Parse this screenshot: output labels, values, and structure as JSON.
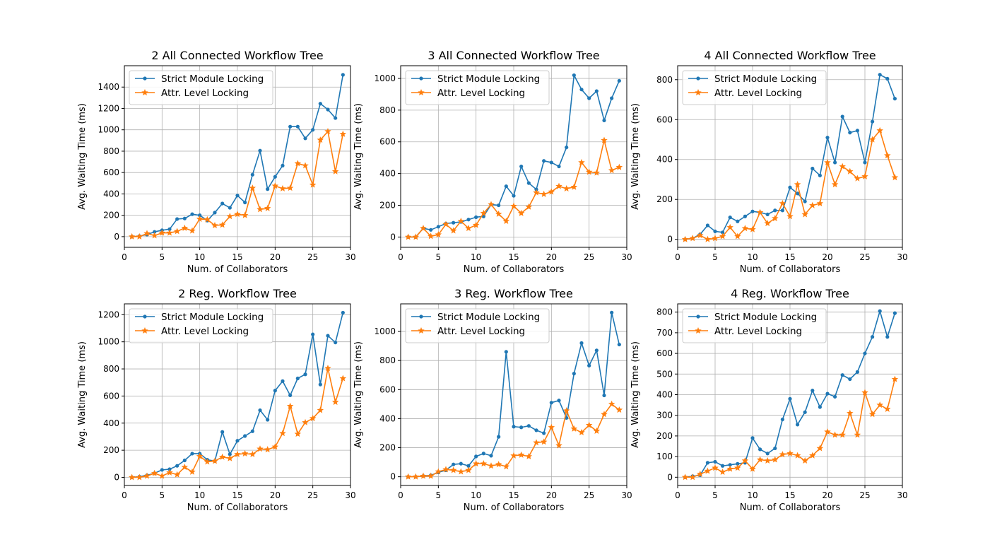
{
  "legend_labels": {
    "strict": "Strict Module Locking",
    "attr": "Attr. Level Locking"
  },
  "colors": {
    "strict": "#1f77b4",
    "attr": "#ff7f0e",
    "grid": "#b0b0b0"
  },
  "chart_data": [
    {
      "type": "line",
      "title": "2 All Connected Workflow Tree",
      "xlabel": "Num. of Collaborators",
      "ylabel": "Avg. Waiting Time (ms)",
      "xlim": [
        0,
        30
      ],
      "ylim": [
        -100,
        1600
      ],
      "xticks": [
        0,
        5,
        10,
        15,
        20,
        25,
        30
      ],
      "yticks": [
        0,
        200,
        400,
        600,
        800,
        1000,
        1200,
        1400
      ],
      "grid": true,
      "legend_position": "top-left",
      "x": [
        1,
        2,
        3,
        4,
        5,
        6,
        7,
        8,
        9,
        10,
        11,
        12,
        13,
        14,
        15,
        16,
        17,
        18,
        19,
        20,
        21,
        22,
        23,
        24,
        25,
        26,
        27,
        28,
        29
      ],
      "series": [
        {
          "name": "Strict Module Locking",
          "marker": "dot",
          "values": [
            0,
            5,
            20,
            45,
            60,
            70,
            165,
            170,
            210,
            200,
            150,
            225,
            310,
            270,
            385,
            320,
            580,
            805,
            445,
            560,
            665,
            1030,
            1030,
            920,
            1000,
            1245,
            1190,
            1110,
            1515
          ]
        },
        {
          "name": "Attr. Level Locking",
          "marker": "star",
          "values": [
            0,
            0,
            30,
            10,
            35,
            35,
            50,
            80,
            55,
            165,
            160,
            105,
            110,
            190,
            210,
            200,
            455,
            255,
            265,
            475,
            450,
            455,
            685,
            665,
            485,
            905,
            985,
            610,
            960
          ]
        }
      ]
    },
    {
      "type": "line",
      "title": "3 All Connected Workflow Tree",
      "xlabel": "Num. of Collaborators",
      "ylabel": "Avg. Waiting Time (ms)",
      "xlim": [
        0,
        30
      ],
      "ylim": [
        -65,
        1080
      ],
      "xticks": [
        0,
        5,
        10,
        15,
        20,
        25,
        30
      ],
      "yticks": [
        0,
        200,
        400,
        600,
        800,
        1000
      ],
      "grid": true,
      "legend_position": "top-left",
      "x": [
        1,
        2,
        3,
        4,
        5,
        6,
        7,
        8,
        9,
        10,
        11,
        12,
        13,
        14,
        15,
        16,
        17,
        18,
        19,
        20,
        21,
        22,
        23,
        24,
        25,
        26,
        27,
        28,
        29
      ],
      "series": [
        {
          "name": "Strict Module Locking",
          "marker": "dot",
          "values": [
            0,
            0,
            55,
            45,
            65,
            85,
            90,
            95,
            110,
            125,
            130,
            205,
            200,
            320,
            260,
            445,
            340,
            300,
            480,
            470,
            445,
            565,
            1020,
            930,
            875,
            920,
            735,
            875,
            985
          ]
        },
        {
          "name": "Attr. Level Locking",
          "marker": "star",
          "values": [
            0,
            0,
            55,
            5,
            15,
            80,
            40,
            100,
            55,
            75,
            150,
            205,
            145,
            100,
            195,
            150,
            190,
            280,
            270,
            285,
            320,
            305,
            315,
            470,
            410,
            405,
            610,
            420,
            440
          ]
        }
      ]
    },
    {
      "type": "line",
      "title": "4 All Connected Workflow Tree",
      "xlabel": "Num. of Collaborators",
      "ylabel": "Avg. Waiting Time (ms)",
      "xlim": [
        0,
        30
      ],
      "ylim": [
        -40,
        870
      ],
      "xticks": [
        0,
        5,
        10,
        15,
        20,
        25,
        30
      ],
      "yticks": [
        0,
        200,
        400,
        600,
        800
      ],
      "grid": true,
      "legend_position": "top-left",
      "x": [
        1,
        2,
        3,
        4,
        5,
        6,
        7,
        8,
        9,
        10,
        11,
        12,
        13,
        14,
        15,
        16,
        17,
        18,
        19,
        20,
        21,
        22,
        23,
        24,
        25,
        26,
        27,
        28,
        29
      ],
      "series": [
        {
          "name": "Strict Module Locking",
          "marker": "dot",
          "values": [
            0,
            5,
            25,
            70,
            40,
            35,
            110,
            90,
            115,
            140,
            135,
            125,
            145,
            145,
            260,
            230,
            190,
            355,
            320,
            510,
            385,
            615,
            535,
            545,
            385,
            590,
            825,
            805,
            705
          ]
        },
        {
          "name": "Attr. Level Locking",
          "marker": "star",
          "values": [
            0,
            5,
            20,
            0,
            5,
            15,
            60,
            15,
            55,
            50,
            135,
            80,
            105,
            180,
            115,
            275,
            125,
            170,
            180,
            385,
            275,
            365,
            340,
            305,
            315,
            500,
            545,
            420,
            310
          ]
        }
      ]
    },
    {
      "type": "line",
      "title": "2 Reg. Workflow Tree",
      "xlabel": "Num. of Collaborators",
      "ylabel": "Avg. Waiting Time (ms)",
      "xlim": [
        0,
        30
      ],
      "ylim": [
        -60,
        1280
      ],
      "xticks": [
        0,
        5,
        10,
        15,
        20,
        25,
        30
      ],
      "yticks": [
        0,
        200,
        400,
        600,
        800,
        1000,
        1200
      ],
      "grid": true,
      "legend_position": "top-left",
      "x": [
        1,
        2,
        3,
        4,
        5,
        6,
        7,
        8,
        9,
        10,
        11,
        12,
        13,
        14,
        15,
        16,
        17,
        18,
        19,
        20,
        21,
        22,
        23,
        24,
        25,
        26,
        27,
        28,
        29
      ],
      "series": [
        {
          "name": "Strict Module Locking",
          "marker": "dot",
          "values": [
            0,
            5,
            15,
            30,
            55,
            60,
            85,
            125,
            175,
            175,
            130,
            120,
            335,
            170,
            270,
            305,
            340,
            495,
            425,
            640,
            710,
            605,
            730,
            760,
            1055,
            685,
            1045,
            995,
            1215
          ]
        },
        {
          "name": "Attr. Level Locking",
          "marker": "star",
          "values": [
            0,
            0,
            10,
            30,
            10,
            35,
            20,
            75,
            40,
            155,
            115,
            120,
            150,
            140,
            170,
            175,
            170,
            210,
            205,
            225,
            325,
            525,
            320,
            405,
            435,
            495,
            805,
            555,
            730
          ]
        }
      ]
    },
    {
      "type": "line",
      "title": "3 Reg. Workflow Tree",
      "xlabel": "Num. of Collaborators",
      "ylabel": "Avg. Waiting Time (ms)",
      "xlim": [
        0,
        30
      ],
      "ylim": [
        -60,
        1190
      ],
      "xticks": [
        0,
        5,
        10,
        15,
        20,
        25,
        30
      ],
      "yticks": [
        0,
        200,
        400,
        600,
        800,
        1000
      ],
      "grid": true,
      "legend_position": "top-left",
      "x": [
        1,
        2,
        3,
        4,
        5,
        6,
        7,
        8,
        9,
        10,
        11,
        12,
        13,
        14,
        15,
        16,
        17,
        18,
        19,
        20,
        21,
        22,
        23,
        24,
        25,
        26,
        27,
        28,
        29
      ],
      "series": [
        {
          "name": "Strict Module Locking",
          "marker": "dot",
          "values": [
            0,
            0,
            5,
            10,
            30,
            45,
            85,
            90,
            75,
            140,
            160,
            145,
            275,
            860,
            345,
            340,
            350,
            320,
            300,
            510,
            525,
            405,
            710,
            920,
            765,
            870,
            560,
            1130,
            910
          ]
        },
        {
          "name": "Attr. Level Locking",
          "marker": "star",
          "values": [
            0,
            0,
            5,
            5,
            35,
            50,
            45,
            35,
            45,
            90,
            90,
            75,
            85,
            70,
            145,
            150,
            140,
            235,
            240,
            340,
            215,
            455,
            330,
            305,
            355,
            315,
            430,
            500,
            460
          ]
        }
      ]
    },
    {
      "type": "line",
      "title": "4 Reg. Workflow Tree",
      "xlabel": "Num. of Collaborators",
      "ylabel": "Avg. Waiting Time (ms)",
      "xlim": [
        0,
        30
      ],
      "ylim": [
        -40,
        840
      ],
      "xticks": [
        0,
        5,
        10,
        15,
        20,
        25,
        30
      ],
      "yticks": [
        0,
        100,
        200,
        300,
        400,
        500,
        600,
        700,
        800
      ],
      "grid": true,
      "legend_position": "top-left",
      "x": [
        1,
        2,
        3,
        4,
        5,
        6,
        7,
        8,
        9,
        10,
        11,
        12,
        13,
        14,
        15,
        16,
        17,
        18,
        19,
        20,
        21,
        22,
        23,
        24,
        25,
        26,
        27,
        28,
        29
      ],
      "series": [
        {
          "name": "Strict Module Locking",
          "marker": "dot",
          "values": [
            0,
            5,
            10,
            70,
            75,
            55,
            60,
            65,
            70,
            190,
            135,
            115,
            140,
            280,
            380,
            255,
            315,
            420,
            340,
            405,
            390,
            495,
            475,
            510,
            600,
            680,
            805,
            680,
            795
          ]
        },
        {
          "name": "Attr. Level Locking",
          "marker": "star",
          "values": [
            0,
            0,
            15,
            30,
            45,
            25,
            40,
            45,
            80,
            40,
            85,
            80,
            85,
            110,
            115,
            105,
            80,
            105,
            140,
            220,
            205,
            205,
            310,
            205,
            410,
            305,
            350,
            330,
            475
          ]
        }
      ]
    }
  ]
}
